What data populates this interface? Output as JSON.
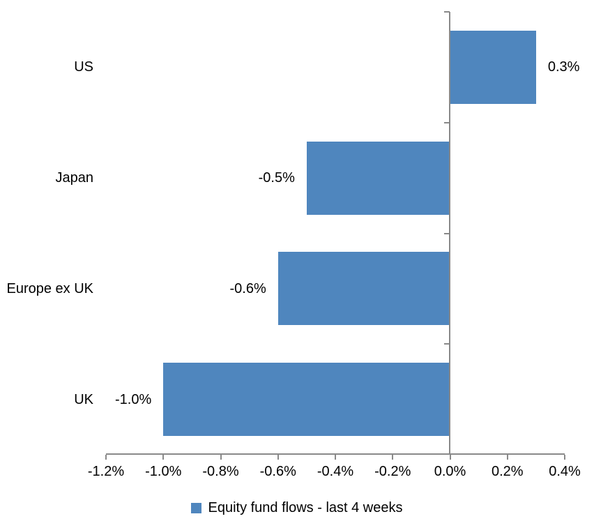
{
  "chart_data": {
    "type": "bar",
    "orientation": "horizontal",
    "title": "",
    "xlabel": "",
    "ylabel": "",
    "categories": [
      "US",
      "Japan",
      "Europe ex UK",
      "UK"
    ],
    "values": [
      0.3,
      -0.5,
      -0.6,
      -1.0
    ],
    "data_labels": [
      "0.3%",
      "-0.5%",
      "-0.6%",
      "-1.0%"
    ],
    "x_tick_labels": [
      "-1.2%",
      "-1.0%",
      "-0.8%",
      "-0.6%",
      "-0.4%",
      "-0.2%",
      "0.0%",
      "0.2%",
      "0.4%"
    ],
    "xlim": [
      -1.2,
      0.4
    ],
    "grid": false,
    "legend": {
      "label": "Equity fund flows - last 4 weeks",
      "position": "bottom"
    },
    "bar_color": "#4F86BE",
    "axis_color": "#898989",
    "background_color": "#ffffff",
    "text_color": "#000000"
  }
}
